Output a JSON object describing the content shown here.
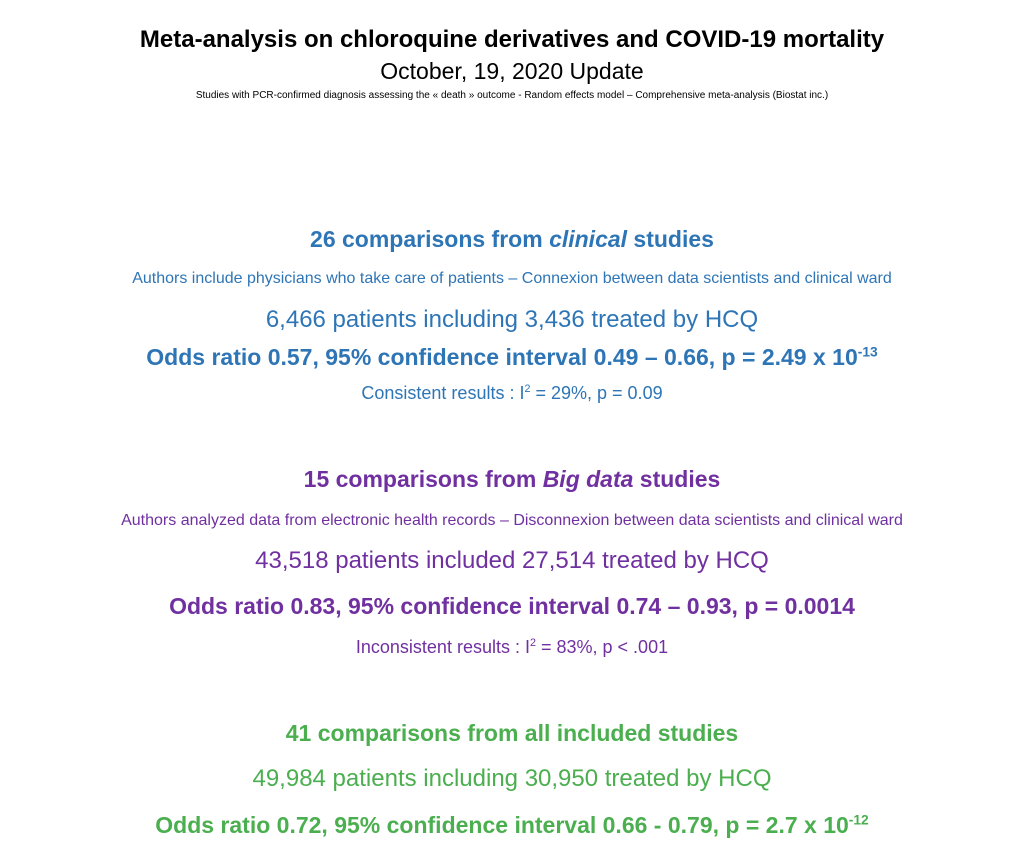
{
  "header": {
    "title": "Meta-analysis on chloroquine derivatives and COVID-19 mortality",
    "date": "October, 19, 2020 Update",
    "description": "Studies with PCR-confirmed diagnosis assessing the « death » outcome - Random effects model – Comprehensive meta-analysis (Biostat inc.)"
  },
  "clinical": {
    "color": "#2E75B6",
    "heading_pre": "26 comparisons from ",
    "heading_em": "clinical",
    "heading_post": " studies",
    "subtitle": "Authors include physicians who take care of patients – Connexion between data scientists and clinical ward",
    "patients": "6,466 patients including 3,436 treated by HCQ",
    "odds_ratio": "Odds ratio 0.57, 95% confidence interval 0.49 – 0.66, p = 2.49 x 10",
    "odds_ratio_exp": "-13",
    "consistency_pre": "Consistent results : I",
    "consistency_sup": "2",
    "consistency_post": " = 29%, p = 0.09"
  },
  "big_data": {
    "color": "#7030A0",
    "heading_pre": "15 comparisons from ",
    "heading_em": "Big data",
    "heading_post": " studies",
    "subtitle": "Authors analyzed data from electronic health records – Disconnexion between data scientists and clinical ward",
    "patients": "43,518 patients included 27,514 treated by HCQ",
    "odds_ratio": "Odds ratio 0.83, 95% confidence interval 0.74 – 0.93, p = 0.0014",
    "consistency_pre": "Inconsistent results : I",
    "consistency_sup": "2",
    "consistency_post": " = 83%, p < .001"
  },
  "all": {
    "color": "#4BAF4F",
    "heading": "41 comparisons from all included studies",
    "patients": "49,984 patients including 30,950 treated by HCQ",
    "odds_ratio": "Odds ratio 0.72, 95% confidence interval 0.66 - 0.79, p = 2.7 x 10",
    "odds_ratio_exp": "-12"
  }
}
